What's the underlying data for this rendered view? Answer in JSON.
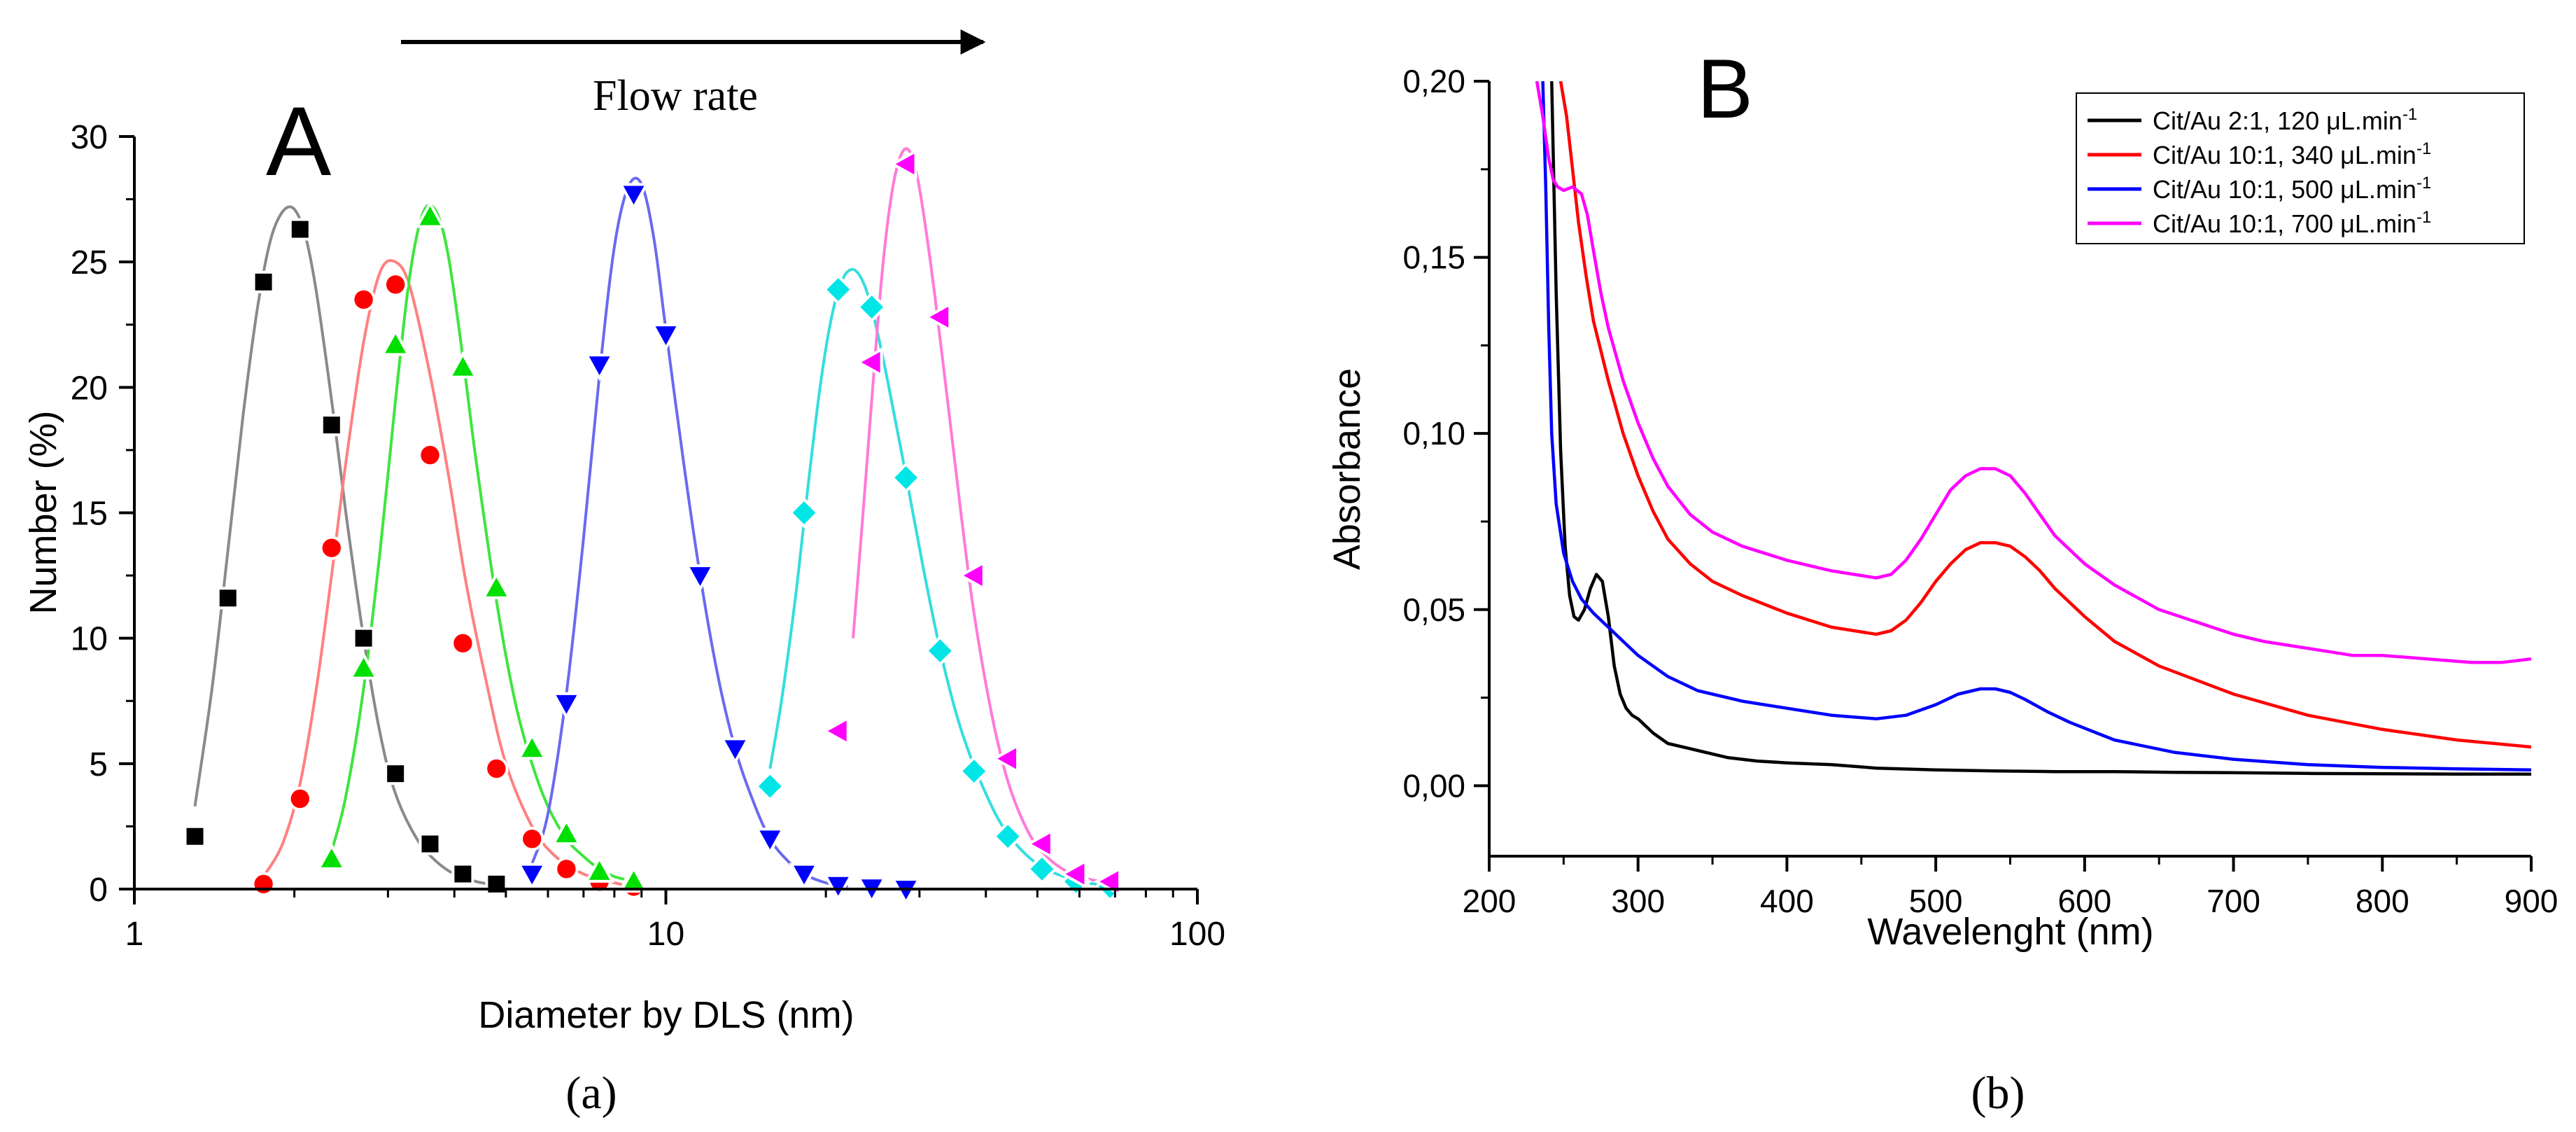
{
  "chart_data": [
    {
      "id": "A",
      "type": "scatter",
      "panel_letter": "A",
      "caption": "(a)",
      "annotation": "Flow rate",
      "xlabel": "Diameter by DLS (nm)",
      "ylabel": "Number (%)",
      "xscale": "log",
      "xlim": [
        1,
        100
      ],
      "ylim": [
        0,
        30
      ],
      "x_ticks": [
        1,
        10,
        100
      ],
      "x_tick_labels": [
        "1",
        "10",
        "100"
      ],
      "y_ticks": [
        0,
        5,
        10,
        15,
        20,
        25,
        30
      ],
      "y_tick_labels": [
        "0",
        "5",
        "10",
        "15",
        "20",
        "25",
        "30"
      ],
      "grid": false,
      "series": [
        {
          "name": "black",
          "color": "#000000",
          "line_color": "#8a8a8a",
          "marker": "square",
          "x": [
            1.3,
            1.5,
            1.75,
            2.05,
            2.35,
            2.7,
            3.1,
            3.6,
            4.15,
            4.8
          ],
          "values": [
            2.1,
            11.6,
            24.2,
            26.3,
            18.5,
            10.0,
            4.6,
            1.8,
            0.6,
            0.2
          ],
          "fit_x": [
            1.3,
            1.4,
            1.5,
            1.6,
            1.7,
            1.8,
            1.9,
            2.0,
            2.1,
            2.2,
            2.35,
            2.5,
            2.7,
            2.9,
            3.1,
            3.4,
            3.7,
            4.0,
            4.4,
            4.8
          ],
          "fit_y": [
            3.3,
            8.0,
            13.5,
            18.8,
            23.0,
            25.8,
            27.0,
            27.1,
            26.0,
            23.8,
            19.5,
            15.0,
            10.0,
            6.2,
            3.8,
            2.0,
            1.1,
            0.6,
            0.3,
            0.15
          ]
        },
        {
          "name": "red",
          "color": "#ff0000",
          "line_color": "#ff8080",
          "marker": "circle",
          "x": [
            1.75,
            2.05,
            2.35,
            2.7,
            3.1,
            3.6,
            4.15,
            4.8,
            5.6,
            6.5,
            7.5,
            8.7
          ],
          "values": [
            0.2,
            3.6,
            13.6,
            23.5,
            24.1,
            17.3,
            9.8,
            4.8,
            2.0,
            0.8,
            0.3,
            0.1
          ],
          "fit_x": [
            1.75,
            1.9,
            2.05,
            2.2,
            2.35,
            2.5,
            2.7,
            2.9,
            3.1,
            3.3,
            3.6,
            3.9,
            4.2,
            4.6,
            5.0,
            5.6,
            6.2,
            7.0,
            8.0,
            8.7
          ],
          "fit_y": [
            0.5,
            1.8,
            4.2,
            8.0,
            12.5,
            17.0,
            21.8,
            24.6,
            25.0,
            24.0,
            20.5,
            16.5,
            12.3,
            8.2,
            5.0,
            2.5,
            1.3,
            0.6,
            0.25,
            0.1
          ]
        },
        {
          "name": "green",
          "color": "#00e000",
          "line_color": "#3ee53e",
          "marker": "triangle-up",
          "x": [
            2.35,
            2.7,
            3.1,
            3.6,
            4.15,
            4.8,
            5.6,
            6.5,
            7.5,
            8.7
          ],
          "values": [
            1.2,
            8.8,
            21.7,
            26.8,
            20.8,
            12.0,
            5.6,
            2.2,
            0.7,
            0.3
          ],
          "fit_x": [
            2.35,
            2.5,
            2.7,
            2.9,
            3.1,
            3.3,
            3.5,
            3.7,
            3.9,
            4.15,
            4.4,
            4.8,
            5.2,
            5.6,
            6.0,
            6.5,
            7.0,
            7.5,
            8.0,
            8.7
          ],
          "fit_y": [
            1.5,
            3.7,
            8.0,
            13.5,
            19.5,
            24.5,
            27.0,
            27.0,
            25.2,
            21.2,
            17.0,
            11.5,
            7.5,
            5.0,
            3.3,
            2.0,
            1.3,
            0.8,
            0.5,
            0.3
          ]
        },
        {
          "name": "blue",
          "color": "#0000ff",
          "line_color": "#6a6af0",
          "marker": "triangle-down",
          "x": [
            5.6,
            6.5,
            7.5,
            8.7,
            10.0,
            11.6,
            13.5,
            15.7,
            18.2,
            21.1,
            24.4,
            28.3
          ],
          "values": [
            0.6,
            7.4,
            20.9,
            27.7,
            22.1,
            12.5,
            5.6,
            2.0,
            0.6,
            0.15,
            0.05,
            0.0
          ],
          "fit_x": [
            5.6,
            6.0,
            6.5,
            7.0,
            7.5,
            8.0,
            8.5,
            9.0,
            9.5,
            10.0,
            10.8,
            11.6,
            12.5,
            13.5,
            14.6,
            15.7,
            17.0,
            18.2,
            20.0,
            22.0
          ],
          "fit_y": [
            1.0,
            3.0,
            7.8,
            14.0,
            20.5,
            25.6,
            28.0,
            28.1,
            25.9,
            22.3,
            17.0,
            12.5,
            8.6,
            5.6,
            3.5,
            2.0,
            1.1,
            0.6,
            0.25,
            0.1
          ]
        },
        {
          "name": "cyan",
          "color": "#00e5e5",
          "line_color": "#33dede",
          "marker": "diamond",
          "x": [
            15.7,
            18.2,
            21.1,
            24.4,
            28.3,
            32.8,
            38.0,
            44.0,
            51.0,
            59.1,
            68.5
          ],
          "values": [
            4.1,
            15.0,
            23.9,
            23.2,
            16.4,
            9.5,
            4.7,
            2.1,
            0.8,
            0.3,
            0.1
          ],
          "fit_x": [
            15.7,
            16.5,
            17.5,
            18.5,
            19.5,
            20.5,
            21.5,
            22.5,
            23.5,
            24.5,
            26.0,
            28.0,
            30.5,
            33.0,
            36.0,
            40.0,
            44.0,
            50.0,
            58.0,
            68.5
          ],
          "fit_y": [
            4.8,
            7.5,
            11.5,
            16.0,
            20.0,
            22.8,
            24.3,
            24.7,
            24.2,
            23.0,
            20.5,
            17.0,
            12.8,
            9.3,
            6.3,
            3.8,
            2.2,
            1.0,
            0.4,
            0.1
          ]
        },
        {
          "name": "magenta",
          "color": "#ff00ff",
          "line_color": "#ff7ad8",
          "marker": "triangle-left",
          "x": [
            21.1,
            24.4,
            28.3,
            32.8,
            38.0,
            44.0,
            51.0,
            59.1,
            68.5
          ],
          "values": [
            6.3,
            21.0,
            28.9,
            22.8,
            12.5,
            5.2,
            1.8,
            0.6,
            0.3
          ],
          "fit_x": [
            22.5,
            23.5,
            24.5,
            25.5,
            26.5,
            27.5,
            28.5,
            29.5,
            30.5,
            32.0,
            34.0,
            36.0,
            38.0,
            41.0,
            44.0,
            48.0,
            52.0,
            58.0,
            64.0,
            68.5
          ],
          "fit_y": [
            10.0,
            15.0,
            20.0,
            24.5,
            27.5,
            29.1,
            29.5,
            28.7,
            27.0,
            23.8,
            19.2,
            14.8,
            11.0,
            7.0,
            4.3,
            2.3,
            1.3,
            0.6,
            0.35,
            0.25
          ]
        }
      ]
    },
    {
      "id": "B",
      "type": "line",
      "panel_letter": "B",
      "caption": "(b)",
      "xlabel": "Wavelenght (nm)",
      "ylabel": "Absorbance",
      "xlim": [
        200,
        900
      ],
      "ylim": [
        -0.02,
        0.2
      ],
      "x_ticks": [
        200,
        300,
        400,
        500,
        600,
        700,
        800,
        900
      ],
      "x_tick_labels": [
        "200",
        "300",
        "400",
        "500",
        "600",
        "700",
        "800",
        "900"
      ],
      "y_ticks": [
        0.0,
        0.05,
        0.1,
        0.15,
        0.2
      ],
      "y_tick_labels": [
        "0,00",
        "0,05",
        "0,10",
        "0,15",
        "0,20"
      ],
      "grid": false,
      "legend_position": "top-right",
      "series": [
        {
          "name": "Cit/Au 2:1, 120 μL.min",
          "superscript": "-1",
          "color": "#000000",
          "x": [
            242,
            245,
            248,
            251,
            254,
            257,
            260,
            264,
            268,
            272,
            276,
            280,
            284,
            288,
            292,
            296,
            300,
            310,
            320,
            340,
            360,
            380,
            400,
            430,
            460,
            500,
            540,
            580,
            620,
            660,
            700,
            750,
            800,
            850,
            900
          ],
          "values": [
            0.2,
            0.14,
            0.095,
            0.068,
            0.054,
            0.048,
            0.047,
            0.05,
            0.056,
            0.06,
            0.058,
            0.048,
            0.034,
            0.026,
            0.022,
            0.02,
            0.019,
            0.015,
            0.012,
            0.01,
            0.008,
            0.007,
            0.0065,
            0.006,
            0.005,
            0.0045,
            0.0042,
            0.004,
            0.004,
            0.0038,
            0.0037,
            0.0035,
            0.0034,
            0.0033,
            0.0033
          ]
        },
        {
          "name": "Cit/Au 10:1, 340 μL.min",
          "superscript": "-1",
          "color": "#ff0000",
          "x": [
            248,
            252,
            256,
            260,
            265,
            270,
            280,
            290,
            300,
            310,
            320,
            335,
            350,
            370,
            400,
            430,
            460,
            470,
            480,
            490,
            500,
            510,
            520,
            530,
            540,
            550,
            560,
            570,
            580,
            600,
            620,
            650,
            700,
            750,
            800,
            850,
            900
          ],
          "values": [
            0.2,
            0.19,
            0.175,
            0.16,
            0.145,
            0.132,
            0.115,
            0.1,
            0.088,
            0.078,
            0.07,
            0.063,
            0.058,
            0.054,
            0.049,
            0.045,
            0.043,
            0.044,
            0.047,
            0.052,
            0.058,
            0.063,
            0.067,
            0.069,
            0.069,
            0.068,
            0.065,
            0.061,
            0.056,
            0.048,
            0.041,
            0.034,
            0.026,
            0.02,
            0.016,
            0.013,
            0.011
          ]
        },
        {
          "name": "Cit/Au 10:1, 500 μL.min",
          "superscript": "-1",
          "color": "#0000ff",
          "x": [
            236,
            238,
            240,
            242,
            245,
            250,
            256,
            262,
            270,
            280,
            290,
            300,
            320,
            340,
            370,
            400,
            430,
            460,
            480,
            500,
            515,
            530,
            540,
            550,
            560,
            575,
            590,
            620,
            660,
            700,
            750,
            800,
            850,
            900
          ],
          "values": [
            0.2,
            0.17,
            0.13,
            0.1,
            0.08,
            0.066,
            0.058,
            0.053,
            0.049,
            0.045,
            0.041,
            0.037,
            0.031,
            0.027,
            0.024,
            0.022,
            0.02,
            0.019,
            0.02,
            0.023,
            0.026,
            0.0275,
            0.0275,
            0.0265,
            0.0245,
            0.021,
            0.018,
            0.013,
            0.0095,
            0.0075,
            0.006,
            0.0052,
            0.0048,
            0.0045
          ]
        },
        {
          "name": "Cit/Au 10:1, 700 μL.min",
          "superscript": "-1",
          "color": "#ff00ff",
          "x": [
            232,
            236,
            240,
            243,
            246,
            250,
            256,
            262,
            266,
            270,
            275,
            280,
            290,
            300,
            310,
            320,
            335,
            350,
            370,
            400,
            430,
            460,
            470,
            480,
            490,
            500,
            510,
            520,
            530,
            540,
            550,
            560,
            570,
            580,
            600,
            620,
            650,
            700,
            720,
            750,
            780,
            800,
            830,
            860,
            880,
            900
          ],
          "values": [
            0.2,
            0.19,
            0.178,
            0.172,
            0.17,
            0.169,
            0.17,
            0.168,
            0.162,
            0.152,
            0.14,
            0.13,
            0.115,
            0.103,
            0.093,
            0.085,
            0.077,
            0.072,
            0.068,
            0.064,
            0.061,
            0.059,
            0.06,
            0.064,
            0.07,
            0.077,
            0.084,
            0.088,
            0.09,
            0.09,
            0.088,
            0.083,
            0.077,
            0.071,
            0.063,
            0.057,
            0.05,
            0.043,
            0.041,
            0.039,
            0.037,
            0.037,
            0.036,
            0.035,
            0.035,
            0.036
          ]
        }
      ]
    }
  ]
}
